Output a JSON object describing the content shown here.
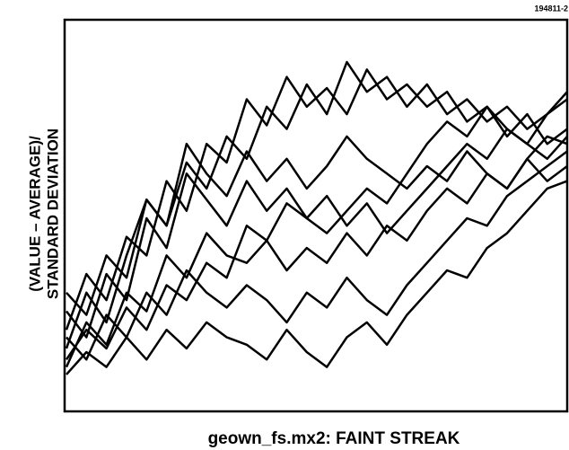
{
  "chart_data": {
    "type": "line",
    "tag": "194811-2",
    "ylabel": [
      "(VALUE – AVERAGE)/",
      "STANDARD DEVIATION"
    ],
    "xlabel": "geown_fs.mx2: FAINT STREAK",
    "color": "#000000",
    "xlim": [
      0,
      50
    ],
    "ylim": [
      0,
      100
    ],
    "x": [
      0,
      2,
      4,
      6,
      8,
      10,
      12,
      14,
      16,
      18,
      20,
      22,
      24,
      26,
      28,
      30,
      32,
      34,
      36,
      38,
      40,
      42,
      44,
      46,
      48,
      50
    ],
    "series": [
      {
        "values": [
          20,
          35,
          28,
          45,
          40,
          60,
          52,
          70,
          65,
          82,
          75,
          88,
          80,
          85,
          78,
          90,
          82,
          86,
          80,
          84,
          76,
          80,
          72,
          78,
          70,
          74
        ]
      },
      {
        "values": [
          15,
          30,
          22,
          40,
          55,
          48,
          65,
          58,
          72,
          66,
          80,
          74,
          86,
          78,
          92,
          84,
          88,
          80,
          86,
          78,
          82,
          76,
          80,
          74,
          78,
          84
        ]
      },
      {
        "values": [
          25,
          18,
          35,
          28,
          50,
          42,
          62,
          55,
          48,
          60,
          52,
          58,
          50,
          56,
          48,
          54,
          46,
          52,
          58,
          64,
          70,
          66,
          74,
          70,
          78,
          82
        ]
      },
      {
        "values": [
          10,
          22,
          16,
          30,
          25,
          40,
          34,
          46,
          40,
          38,
          44,
          36,
          42,
          38,
          46,
          40,
          48,
          44,
          52,
          58,
          54,
          62,
          58,
          66,
          72,
          70
        ]
      },
      {
        "values": [
          18,
          12,
          24,
          18,
          30,
          24,
          36,
          30,
          26,
          32,
          28,
          22,
          30,
          26,
          34,
          28,
          24,
          32,
          38,
          44,
          50,
          48,
          56,
          60,
          64,
          68
        ]
      },
      {
        "values": [
          8,
          14,
          10,
          18,
          12,
          20,
          15,
          22,
          18,
          16,
          12,
          20,
          14,
          10,
          18,
          22,
          16,
          24,
          30,
          36,
          34,
          42,
          46,
          52,
          58,
          60
        ]
      },
      {
        "values": [
          30,
          24,
          40,
          34,
          55,
          48,
          70,
          62,
          56,
          68,
          60,
          66,
          58,
          64,
          72,
          66,
          62,
          58,
          64,
          60,
          68,
          62,
          58,
          66,
          60,
          64
        ]
      },
      {
        "values": [
          12,
          20,
          15,
          26,
          20,
          32,
          28,
          38,
          34,
          48,
          44,
          54,
          50,
          46,
          52,
          58,
          54,
          62,
          70,
          76,
          72,
          80,
          74,
          70,
          66,
          72
        ]
      }
    ]
  }
}
